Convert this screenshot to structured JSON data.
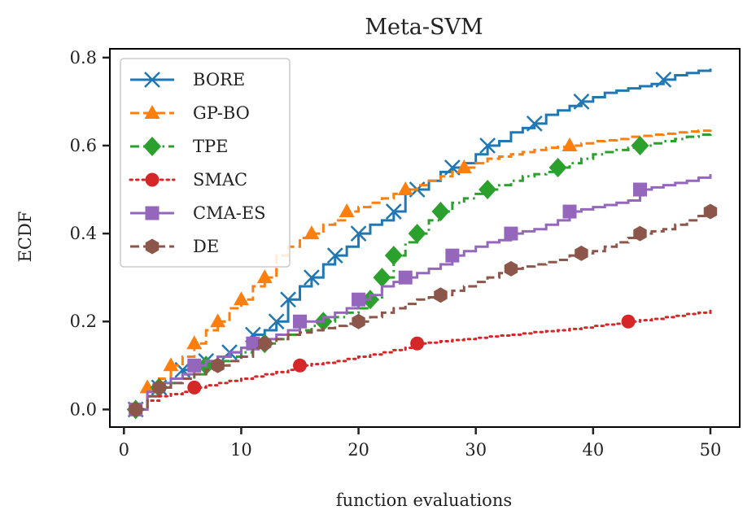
{
  "chart_data": {
    "type": "line",
    "title": "Meta-SVM",
    "xlabel": "function evaluations",
    "ylabel": "ECDF",
    "xlim": [
      -1.2,
      52.5
    ],
    "ylim": [
      -0.04,
      0.82
    ],
    "xticks": [
      0,
      10,
      20,
      30,
      40,
      50
    ],
    "xtick_labels": [
      "0",
      "10",
      "20",
      "30",
      "40",
      "50"
    ],
    "yticks": [
      0.0,
      0.2,
      0.4,
      0.6,
      0.8
    ],
    "ytick_labels": [
      "0.0",
      "0.2",
      "0.4",
      "0.6",
      "0.8"
    ],
    "grid": false,
    "legend_position": "top-left",
    "line_style": "steps",
    "series": [
      {
        "name": "BORE",
        "color": "#1f77b4",
        "dash": "solid",
        "marker": "x",
        "x": [
          1,
          2,
          3,
          4,
          5,
          6,
          7,
          8,
          9,
          10,
          11,
          12,
          13,
          14,
          15,
          16,
          17,
          18,
          19,
          20,
          21,
          22,
          23,
          24,
          25,
          26,
          27,
          28,
          29,
          30,
          31,
          32,
          33,
          34,
          35,
          36,
          37,
          38,
          39,
          40,
          41,
          42,
          43,
          44,
          45,
          46,
          47,
          48,
          49,
          50
        ],
        "y": [
          0.0,
          0.03,
          0.05,
          0.07,
          0.09,
          0.1,
          0.11,
          0.12,
          0.13,
          0.14,
          0.17,
          0.18,
          0.2,
          0.25,
          0.28,
          0.3,
          0.33,
          0.35,
          0.37,
          0.4,
          0.42,
          0.43,
          0.45,
          0.5,
          0.5,
          0.52,
          0.54,
          0.55,
          0.56,
          0.58,
          0.6,
          0.61,
          0.63,
          0.64,
          0.65,
          0.67,
          0.68,
          0.69,
          0.7,
          0.71,
          0.72,
          0.725,
          0.73,
          0.735,
          0.74,
          0.75,
          0.76,
          0.765,
          0.77,
          0.775
        ],
        "marker_x": [
          1,
          3,
          5,
          7,
          9,
          11,
          13,
          14,
          16,
          18,
          20,
          23,
          25,
          28,
          31,
          35,
          39,
          46
        ]
      },
      {
        "name": "GP-BO",
        "color": "#ff7f0e",
        "dash": "dashed",
        "marker": "triangle",
        "x": [
          1,
          2,
          3,
          4,
          5,
          6,
          7,
          8,
          9,
          10,
          11,
          12,
          13,
          14,
          15,
          16,
          17,
          18,
          19,
          20,
          21,
          22,
          23,
          24,
          25,
          26,
          27,
          28,
          29,
          30,
          31,
          32,
          33,
          34,
          35,
          36,
          37,
          38,
          39,
          40,
          41,
          42,
          43,
          44,
          45,
          46,
          47,
          48,
          49,
          50
        ],
        "y": [
          0.0,
          0.05,
          0.07,
          0.1,
          0.12,
          0.15,
          0.18,
          0.2,
          0.23,
          0.25,
          0.28,
          0.3,
          0.35,
          0.37,
          0.39,
          0.4,
          0.42,
          0.43,
          0.45,
          0.46,
          0.47,
          0.48,
          0.49,
          0.5,
          0.51,
          0.52,
          0.53,
          0.54,
          0.55,
          0.56,
          0.57,
          0.575,
          0.58,
          0.585,
          0.59,
          0.595,
          0.597,
          0.6,
          0.605,
          0.61,
          0.612,
          0.615,
          0.62,
          0.622,
          0.625,
          0.627,
          0.63,
          0.632,
          0.634,
          0.636
        ],
        "marker_x": [
          2,
          4,
          6,
          8,
          10,
          12,
          16,
          19,
          24,
          29,
          38
        ]
      },
      {
        "name": "TPE",
        "color": "#2ca02c",
        "dash": "dashdot",
        "marker": "diamond",
        "x": [
          1,
          2,
          3,
          4,
          5,
          6,
          7,
          8,
          9,
          10,
          11,
          12,
          13,
          14,
          15,
          16,
          17,
          18,
          19,
          20,
          21,
          22,
          23,
          24,
          25,
          26,
          27,
          28,
          29,
          30,
          31,
          32,
          33,
          34,
          35,
          36,
          37,
          38,
          39,
          40,
          41,
          42,
          43,
          44,
          45,
          46,
          47,
          48,
          49,
          50
        ],
        "y": [
          0.0,
          0.03,
          0.05,
          0.06,
          0.07,
          0.08,
          0.1,
          0.11,
          0.12,
          0.13,
          0.14,
          0.15,
          0.16,
          0.17,
          0.18,
          0.19,
          0.2,
          0.21,
          0.22,
          0.23,
          0.25,
          0.3,
          0.35,
          0.38,
          0.4,
          0.43,
          0.45,
          0.47,
          0.48,
          0.49,
          0.5,
          0.51,
          0.52,
          0.53,
          0.535,
          0.54,
          0.55,
          0.56,
          0.57,
          0.58,
          0.585,
          0.59,
          0.595,
          0.6,
          0.605,
          0.61,
          0.615,
          0.62,
          0.625,
          0.628
        ],
        "marker_x": [
          1,
          3,
          7,
          12,
          17,
          21,
          22,
          23,
          25,
          27,
          31,
          37,
          44
        ]
      },
      {
        "name": "SMAC",
        "color": "#d62728",
        "dash": "dotted",
        "marker": "circle",
        "x": [
          1,
          2,
          3,
          4,
          5,
          6,
          7,
          8,
          9,
          10,
          11,
          12,
          13,
          14,
          15,
          16,
          17,
          18,
          19,
          20,
          21,
          22,
          23,
          24,
          25,
          26,
          27,
          28,
          29,
          30,
          31,
          32,
          33,
          34,
          35,
          36,
          37,
          38,
          39,
          40,
          41,
          42,
          43,
          44,
          45,
          46,
          47,
          48,
          49,
          50
        ],
        "y": [
          0.0,
          0.02,
          0.03,
          0.035,
          0.04,
          0.05,
          0.055,
          0.06,
          0.065,
          0.07,
          0.075,
          0.08,
          0.085,
          0.09,
          0.1,
          0.103,
          0.106,
          0.11,
          0.115,
          0.12,
          0.125,
          0.13,
          0.135,
          0.14,
          0.15,
          0.152,
          0.155,
          0.158,
          0.16,
          0.163,
          0.166,
          0.168,
          0.17,
          0.173,
          0.176,
          0.178,
          0.18,
          0.183,
          0.186,
          0.19,
          0.193,
          0.195,
          0.2,
          0.203,
          0.206,
          0.21,
          0.213,
          0.217,
          0.22,
          0.225
        ],
        "marker_x": [
          6,
          15,
          25,
          43
        ]
      },
      {
        "name": "CMA-ES",
        "color": "#9467bd",
        "dash": "solid",
        "marker": "square",
        "x": [
          1,
          2,
          3,
          4,
          5,
          6,
          7,
          8,
          9,
          10,
          11,
          12,
          13,
          14,
          15,
          16,
          17,
          18,
          19,
          20,
          21,
          22,
          23,
          24,
          25,
          26,
          27,
          28,
          29,
          30,
          31,
          32,
          33,
          34,
          35,
          36,
          37,
          38,
          39,
          40,
          41,
          42,
          43,
          44,
          45,
          46,
          47,
          48,
          49,
          50
        ],
        "y": [
          0.0,
          0.04,
          0.06,
          0.07,
          0.08,
          0.1,
          0.11,
          0.12,
          0.13,
          0.14,
          0.15,
          0.16,
          0.17,
          0.18,
          0.2,
          0.2,
          0.21,
          0.22,
          0.23,
          0.25,
          0.26,
          0.28,
          0.29,
          0.3,
          0.31,
          0.32,
          0.33,
          0.35,
          0.36,
          0.37,
          0.38,
          0.385,
          0.4,
          0.405,
          0.41,
          0.42,
          0.43,
          0.45,
          0.455,
          0.46,
          0.465,
          0.47,
          0.475,
          0.5,
          0.505,
          0.51,
          0.515,
          0.52,
          0.527,
          0.535
        ],
        "marker_x": [
          1,
          6,
          11,
          15,
          20,
          24,
          28,
          33,
          38,
          44
        ]
      },
      {
        "name": "DE",
        "color": "#8c564b",
        "dash": "dashed",
        "marker": "hexagon",
        "x": [
          1,
          2,
          3,
          4,
          5,
          6,
          7,
          8,
          9,
          10,
          11,
          12,
          13,
          14,
          15,
          16,
          17,
          18,
          19,
          20,
          21,
          22,
          23,
          24,
          25,
          26,
          27,
          28,
          29,
          30,
          31,
          32,
          33,
          34,
          35,
          36,
          37,
          38,
          39,
          40,
          41,
          42,
          43,
          44,
          45,
          46,
          47,
          48,
          49,
          50
        ],
        "y": [
          0.0,
          0.03,
          0.05,
          0.06,
          0.07,
          0.08,
          0.09,
          0.1,
          0.11,
          0.12,
          0.14,
          0.15,
          0.16,
          0.17,
          0.175,
          0.18,
          0.185,
          0.19,
          0.195,
          0.2,
          0.21,
          0.22,
          0.23,
          0.24,
          0.25,
          0.255,
          0.26,
          0.27,
          0.28,
          0.29,
          0.3,
          0.31,
          0.32,
          0.325,
          0.33,
          0.335,
          0.34,
          0.35,
          0.355,
          0.36,
          0.37,
          0.38,
          0.39,
          0.4,
          0.405,
          0.41,
          0.42,
          0.43,
          0.44,
          0.45
        ],
        "marker_x": [
          1,
          3,
          8,
          12,
          20,
          27,
          33,
          39,
          44,
          50
        ]
      }
    ]
  }
}
